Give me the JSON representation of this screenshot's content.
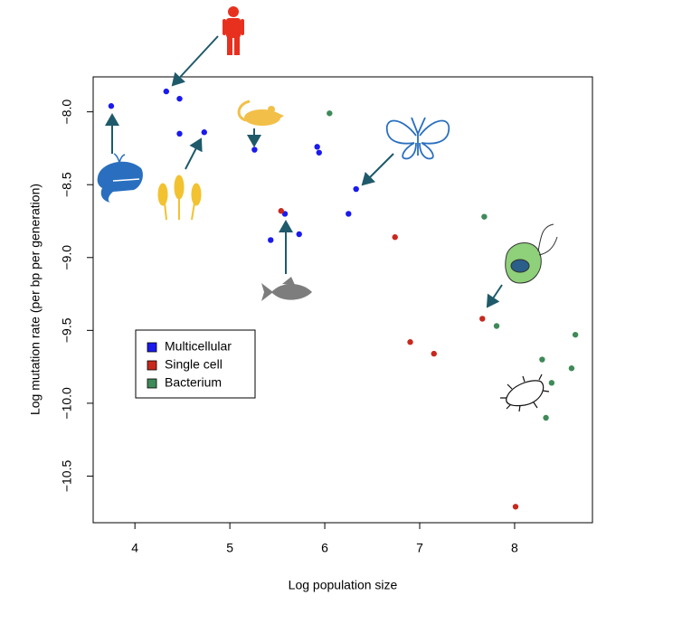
{
  "chart_data": {
    "type": "scatter",
    "x_label": "Log population size",
    "y_label": "Log mutation rate (per bp per generation)",
    "xlim": [
      3.56,
      8.82
    ],
    "ylim": [
      -10.82,
      -7.76
    ],
    "xticks": [
      4,
      5,
      6,
      7,
      8
    ],
    "yticks": [
      {
        "value": -8,
        "label": "−8.0"
      },
      {
        "value": -8.5,
        "label": "−8.5"
      },
      {
        "value": -9,
        "label": "−9.0"
      },
      {
        "value": -9.5,
        "label": "−9.5"
      },
      {
        "value": -10,
        "label": "−10.0"
      },
      {
        "value": -10.5,
        "label": "−10.5"
      }
    ],
    "legend": "bottom-left",
    "series": [
      {
        "name": "Multicellular",
        "color": "#1a1aee",
        "x": [
          3.75,
          4.33,
          4.47,
          4.47,
          4.73,
          5.26,
          5.92,
          5.94,
          6.33,
          6.25,
          5.58,
          5.43,
          5.73
        ],
        "values": [
          -7.96,
          -7.86,
          -7.91,
          -8.15,
          -8.14,
          -8.26,
          -8.24,
          -8.28,
          -8.53,
          -8.7,
          -8.7,
          -8.88,
          -8.84
        ]
      },
      {
        "name": "Single cell",
        "color": "#c8281e",
        "x": [
          5.54,
          6.74,
          7.66,
          6.9,
          7.15,
          8.01
        ],
        "values": [
          -8.68,
          -8.86,
          -9.42,
          -9.58,
          -9.66,
          -10.71
        ]
      },
      {
        "name": "Bacterium",
        "color": "#3e8a58",
        "x": [
          6.05,
          7.68,
          7.81,
          8.64,
          8.29,
          8.6,
          8.39,
          8.33
        ],
        "values": [
          -8.01,
          -8.72,
          -9.47,
          -9.53,
          -9.7,
          -9.76,
          -9.86,
          -10.1
        ]
      }
    ]
  }
}
